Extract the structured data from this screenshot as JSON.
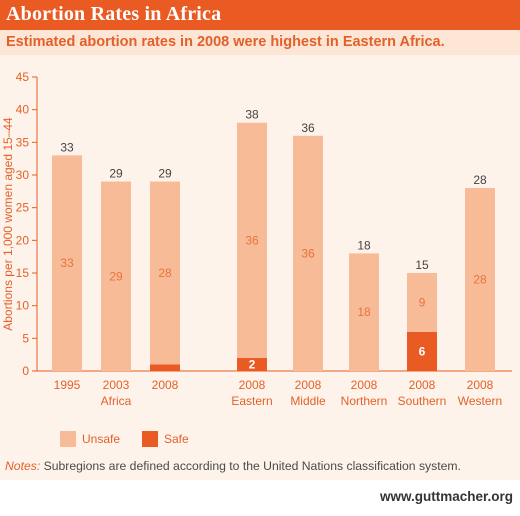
{
  "header": {
    "title": "Abortion Rates in Africa",
    "subtitle": "Estimated abortion rates in 2008 were highest in Eastern Africa."
  },
  "chart_data": {
    "type": "bar",
    "stacked": true,
    "title": "Abortion Rates in Africa",
    "ylabel": "Abortions per 1,000 women aged 15–44",
    "ylim": [
      0,
      45
    ],
    "yticks": [
      0,
      5,
      10,
      15,
      20,
      25,
      30,
      35,
      40,
      45
    ],
    "categories": [
      {
        "year": "1995",
        "region": ""
      },
      {
        "year": "2003",
        "region": "Africa"
      },
      {
        "year": "2008",
        "region": ""
      },
      {
        "year": "2008",
        "region": "Eastern"
      },
      {
        "year": "2008",
        "region": "Middle"
      },
      {
        "year": "2008",
        "region": "Northern"
      },
      {
        "year": "2008",
        "region": "Southern"
      },
      {
        "year": "2008",
        "region": "Western"
      }
    ],
    "series": [
      {
        "name": "Unsafe",
        "color": "#f8bb97",
        "values": [
          33,
          29,
          28,
          36,
          36,
          18,
          9,
          28
        ],
        "labels": [
          "33",
          "29",
          "28",
          "36",
          "36",
          "18",
          "9",
          "28"
        ]
      },
      {
        "name": "Safe",
        "color": "#ea5b24",
        "values": [
          0,
          0,
          1,
          2,
          0,
          0,
          6,
          0
        ],
        "labels": [
          "",
          "",
          "",
          "2",
          "",
          "",
          "6",
          ""
        ]
      }
    ],
    "totals": [
      33,
      29,
      29,
      38,
      36,
      18,
      15,
      28
    ],
    "legend": "bottom-left"
  },
  "footer": {
    "notes_label": "Notes:",
    "notes_text": " Subregions are defined according to the United Nations classification system.",
    "url": "www.guttmacher.org"
  }
}
